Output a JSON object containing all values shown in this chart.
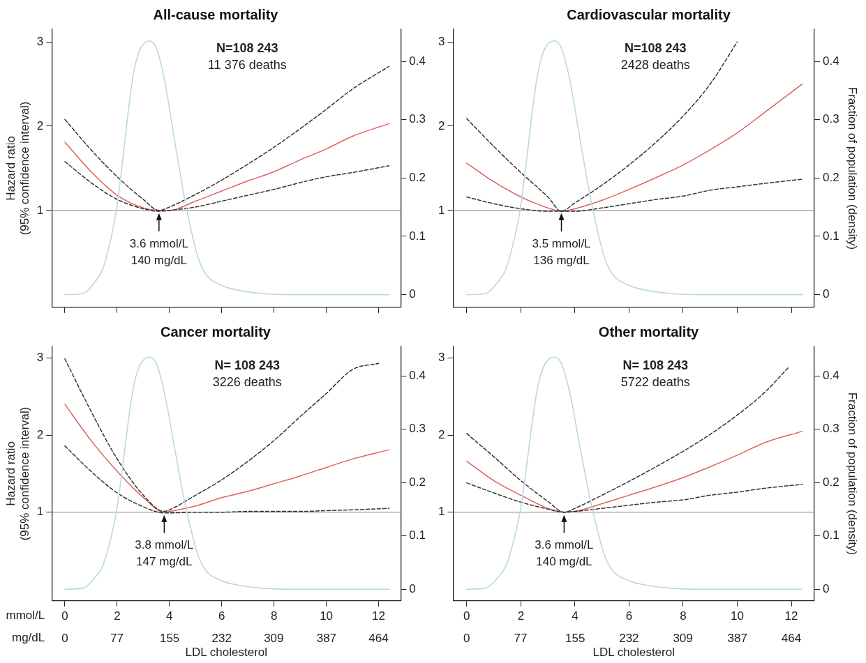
{
  "chart_data": [
    {
      "type": "line",
      "title": "All-cause mortality",
      "ylabel": "Hazard ratio\n(95% confidence interval)",
      "xlim": [
        -0.5,
        12.85
      ],
      "xticks": [
        0,
        2,
        4,
        6,
        8,
        10,
        12
      ],
      "ylim": [
        -0.15,
        3.15
      ],
      "yticks": [
        1,
        2,
        3
      ],
      "y2lim": [
        -0.0217,
        0.455
      ],
      "y2ticks": [
        0,
        0.1,
        0.2,
        0.3,
        0.4
      ],
      "tick_labels": "y",
      "grid": false,
      "legend": false,
      "marker": "none",
      "ref_lines": [
        {
          "axis": "y",
          "value": 1,
          "color": "#808080"
        }
      ],
      "annotations": [
        "N=108 243",
        "11 376 deaths",
        {
          "text": "3.6 mmol/L\n140 mg/dL",
          "x": 3.6,
          "y": 1
        }
      ],
      "series": [
        {
          "type": "line",
          "axis": "y2",
          "color": "#b9d8e4",
          "x": [
            0,
            0.7,
            1.12,
            1.45,
            1.77,
            1.98,
            2.2,
            2.41,
            2.62,
            2.84,
            3.05,
            3.24,
            3.48,
            3.69,
            3.91,
            4.12,
            4.34,
            4.55,
            4.77,
            5.09,
            5.41,
            5.95,
            6.48,
            7.55,
            8.62,
            12.4
          ],
          "values": [
            0,
            0.002,
            0.02,
            0.044,
            0.098,
            0.147,
            0.226,
            0.309,
            0.378,
            0.417,
            0.432,
            0.435,
            0.425,
            0.393,
            0.344,
            0.285,
            0.226,
            0.172,
            0.123,
            0.064,
            0.034,
            0.017,
            0.009,
            0.002,
            0,
            0
          ]
        },
        {
          "type": "line",
          "color": "#333333",
          "line_style": "dashed",
          "x": [
            0,
            1,
            2,
            3,
            3.6,
            4,
            5,
            6,
            7,
            8,
            9,
            10,
            11,
            12.4
          ],
          "values": [
            2.08,
            1.72,
            1.4,
            1.13,
            1.0,
            1.04,
            1.19,
            1.36,
            1.55,
            1.75,
            1.97,
            2.2,
            2.44,
            2.71
          ]
        },
        {
          "type": "line",
          "color": "#333333",
          "line_style": "dashed",
          "x": [
            0,
            1,
            2,
            3,
            3.6,
            4,
            5,
            6,
            7,
            8,
            9,
            10,
            11,
            12.4
          ],
          "values": [
            1.58,
            1.33,
            1.13,
            1.02,
            0.99,
            1.0,
            1.04,
            1.11,
            1.18,
            1.25,
            1.33,
            1.4,
            1.45,
            1.53
          ]
        },
        {
          "type": "line",
          "color": "#e06060",
          "line_style": "solid",
          "x": [
            0,
            1,
            2,
            3,
            3.6,
            4,
            5,
            6,
            7,
            8,
            9,
            10,
            11,
            12.4
          ],
          "values": [
            1.81,
            1.46,
            1.18,
            1.03,
            1.0,
            1.0,
            1.11,
            1.23,
            1.35,
            1.46,
            1.6,
            1.73,
            1.88,
            2.03
          ]
        }
      ]
    },
    {
      "type": "line",
      "title": "Cardiovascular mortality",
      "y2label": "Fraction of population (density)",
      "xlim": [
        -0.5,
        12.85
      ],
      "xticks": [
        0,
        2,
        4,
        6,
        8,
        10,
        12
      ],
      "ylim": [
        -0.15,
        3.15
      ],
      "yticks": [
        1,
        2,
        3
      ],
      "y2lim": [
        -0.0217,
        0.455
      ],
      "y2ticks": [
        0,
        0.1,
        0.2,
        0.3,
        0.4
      ],
      "tick_labels": "y",
      "grid": false,
      "legend": false,
      "marker": "none",
      "ref_lines": [
        {
          "axis": "y",
          "value": 1,
          "color": "#808080"
        }
      ],
      "annotations": [
        "N=108 243",
        "2428 deaths",
        {
          "text": "3.5 mmol/L\n136 mg/dL",
          "x": 3.5,
          "y": 1
        }
      ],
      "series": [
        {
          "type": "line",
          "axis": "y2",
          "color": "#b9d8e4",
          "x": [
            0,
            0.7,
            1.12,
            1.45,
            1.77,
            1.98,
            2.2,
            2.41,
            2.62,
            2.84,
            3.05,
            3.24,
            3.48,
            3.69,
            3.91,
            4.12,
            4.34,
            4.55,
            4.77,
            5.09,
            5.41,
            5.95,
            6.48,
            7.55,
            8.62,
            12.4
          ],
          "values": [
            0,
            0.002,
            0.02,
            0.044,
            0.098,
            0.147,
            0.226,
            0.309,
            0.378,
            0.417,
            0.432,
            0.435,
            0.425,
            0.393,
            0.344,
            0.285,
            0.226,
            0.172,
            0.123,
            0.064,
            0.034,
            0.017,
            0.009,
            0.002,
            0,
            0
          ]
        },
        {
          "type": "line",
          "color": "#333333",
          "line_style": "dashed",
          "x": [
            0,
            1,
            2,
            3,
            3.5,
            4,
            5,
            6,
            7,
            8,
            9,
            10
          ],
          "values": [
            2.09,
            1.76,
            1.45,
            1.16,
            0.99,
            1.09,
            1.3,
            1.54,
            1.81,
            2.12,
            2.5,
            3.0
          ]
        },
        {
          "type": "line",
          "color": "#333333",
          "line_style": "dashed",
          "x": [
            0,
            1,
            2,
            3,
            3.5,
            4,
            5,
            6,
            7,
            8,
            9,
            10,
            11,
            12.4
          ],
          "values": [
            1.16,
            1.08,
            1.02,
            0.99,
            0.99,
            0.99,
            1.03,
            1.08,
            1.13,
            1.17,
            1.24,
            1.28,
            1.32,
            1.37
          ]
        },
        {
          "type": "line",
          "color": "#e06060",
          "line_style": "solid",
          "x": [
            0,
            1,
            2,
            3,
            3.5,
            4,
            5,
            6,
            7,
            8,
            9,
            10,
            11,
            12.4
          ],
          "values": [
            1.56,
            1.34,
            1.16,
            1.03,
            0.99,
            1.02,
            1.12,
            1.25,
            1.39,
            1.54,
            1.72,
            1.92,
            2.16,
            2.5
          ]
        }
      ]
    },
    {
      "type": "line",
      "title": "Cancer mortality",
      "ylabel": "Hazard ratio\n(95% confidence interval)",
      "xlabel": "LDL cholesterol",
      "xlim": [
        -0.5,
        12.85
      ],
      "xticks": [
        0,
        2,
        4,
        6,
        8,
        10,
        12
      ],
      "x2lim": [
        -19.3,
        496.9
      ],
      "x2ticks": [
        0,
        77,
        155,
        232,
        309,
        387,
        464
      ],
      "ylim": [
        -0.15,
        3.15
      ],
      "yticks": [
        1,
        2,
        3
      ],
      "y2lim": [
        -0.0217,
        0.455
      ],
      "y2ticks": [
        0,
        0.1,
        0.2,
        0.3,
        0.4
      ],
      "grid": false,
      "legend": false,
      "marker": "none",
      "ref_lines": [
        {
          "axis": "y",
          "value": 1,
          "color": "#808080"
        }
      ],
      "annotations": [
        "N= 108 243",
        "3226 deaths",
        {
          "text": "3.8 mmol/L\n147 mg/dL",
          "x": 3.8,
          "y": 1
        },
        "mmol/L",
        "mg/dL"
      ],
      "series": [
        {
          "type": "line",
          "axis": "y2",
          "color": "#b9d8e4",
          "x": [
            0,
            0.7,
            1.12,
            1.45,
            1.77,
            1.98,
            2.2,
            2.41,
            2.62,
            2.84,
            3.05,
            3.24,
            3.48,
            3.69,
            3.91,
            4.12,
            4.34,
            4.55,
            4.77,
            5.09,
            5.41,
            5.95,
            6.48,
            7.55,
            8.62,
            12.4
          ],
          "values": [
            0,
            0.002,
            0.02,
            0.044,
            0.098,
            0.147,
            0.226,
            0.309,
            0.378,
            0.417,
            0.432,
            0.435,
            0.425,
            0.393,
            0.344,
            0.285,
            0.226,
            0.172,
            0.123,
            0.064,
            0.034,
            0.017,
            0.009,
            0.002,
            0,
            0
          ]
        },
        {
          "type": "line",
          "color": "#333333",
          "line_style": "dashed",
          "x": [
            0,
            1,
            2,
            3,
            3.8,
            4,
            5,
            6,
            7,
            8,
            9,
            10,
            11,
            12
          ],
          "values": [
            2.99,
            2.31,
            1.69,
            1.22,
            1.01,
            1.03,
            1.22,
            1.42,
            1.66,
            1.93,
            2.24,
            2.54,
            2.85,
            2.93
          ]
        },
        {
          "type": "line",
          "color": "#333333",
          "line_style": "dashed",
          "x": [
            0,
            1,
            2,
            3,
            3.8,
            4,
            5,
            6,
            7,
            8,
            9,
            10,
            11,
            12.4
          ],
          "values": [
            1.86,
            1.53,
            1.25,
            1.07,
            0.99,
            0.99,
            1.0,
            1.0,
            1.01,
            1.01,
            1.01,
            1.02,
            1.03,
            1.05
          ]
        },
        {
          "type": "line",
          "color": "#e06060",
          "line_style": "solid",
          "x": [
            0,
            1,
            2,
            3,
            3.8,
            4,
            5,
            6,
            7,
            8,
            9,
            10,
            11,
            12.4
          ],
          "values": [
            2.4,
            1.93,
            1.53,
            1.19,
            1.0,
            1.01,
            1.08,
            1.19,
            1.27,
            1.37,
            1.47,
            1.58,
            1.69,
            1.81
          ]
        }
      ]
    },
    {
      "type": "line",
      "title": "Other mortality",
      "y2label": "Fraction of population (density)",
      "xlabel": "LDL cholesterol",
      "xlim": [
        -0.5,
        12.85
      ],
      "xticks": [
        0,
        2,
        4,
        6,
        8,
        10,
        12
      ],
      "x2lim": [
        -19.3,
        496.9
      ],
      "x2ticks": [
        0,
        77,
        155,
        232,
        309,
        387,
        464
      ],
      "ylim": [
        -0.15,
        3.15
      ],
      "yticks": [
        1,
        2,
        3
      ],
      "y2lim": [
        -0.0217,
        0.455
      ],
      "y2ticks": [
        0,
        0.1,
        0.2,
        0.3,
        0.4
      ],
      "grid": false,
      "legend": false,
      "marker": "none",
      "ref_lines": [
        {
          "axis": "y",
          "value": 1,
          "color": "#808080"
        }
      ],
      "annotations": [
        "N= 108 243",
        "5722 deaths",
        {
          "text": "3.6 mmol/L\n140 mg/dL",
          "x": 3.6,
          "y": 1
        }
      ],
      "series": [
        {
          "type": "line",
          "axis": "y2",
          "color": "#b9d8e4",
          "x": [
            0,
            0.7,
            1.12,
            1.45,
            1.77,
            1.98,
            2.2,
            2.41,
            2.62,
            2.84,
            3.05,
            3.24,
            3.48,
            3.69,
            3.91,
            4.12,
            4.34,
            4.55,
            4.77,
            5.09,
            5.41,
            5.95,
            6.48,
            7.55,
            8.62,
            12.4
          ],
          "values": [
            0,
            0.002,
            0.02,
            0.044,
            0.098,
            0.147,
            0.226,
            0.309,
            0.378,
            0.417,
            0.432,
            0.435,
            0.425,
            0.393,
            0.344,
            0.285,
            0.226,
            0.172,
            0.123,
            0.064,
            0.034,
            0.017,
            0.009,
            0.002,
            0,
            0
          ]
        },
        {
          "type": "line",
          "color": "#333333",
          "line_style": "dashed",
          "x": [
            0,
            1,
            2,
            3,
            3.6,
            4,
            5,
            6,
            7,
            8,
            9,
            10,
            11,
            11.9
          ],
          "values": [
            2.02,
            1.72,
            1.41,
            1.14,
            1.0,
            1.05,
            1.22,
            1.4,
            1.59,
            1.79,
            2.01,
            2.26,
            2.55,
            2.88
          ]
        },
        {
          "type": "line",
          "color": "#333333",
          "line_style": "dashed",
          "x": [
            0,
            1,
            2,
            3,
            3.6,
            4,
            5,
            6,
            7,
            8,
            9,
            10,
            11,
            12.4
          ],
          "values": [
            1.38,
            1.25,
            1.13,
            1.04,
            1.0,
            1.01,
            1.05,
            1.09,
            1.13,
            1.16,
            1.22,
            1.26,
            1.31,
            1.36
          ]
        },
        {
          "type": "line",
          "color": "#e06060",
          "line_style": "solid",
          "x": [
            0,
            1,
            2,
            3,
            3.6,
            4,
            5,
            6,
            7,
            8,
            9,
            10,
            11,
            12.4
          ],
          "values": [
            1.66,
            1.41,
            1.22,
            1.05,
            1.0,
            1.01,
            1.11,
            1.22,
            1.33,
            1.45,
            1.59,
            1.74,
            1.9,
            2.05
          ]
        }
      ]
    }
  ]
}
